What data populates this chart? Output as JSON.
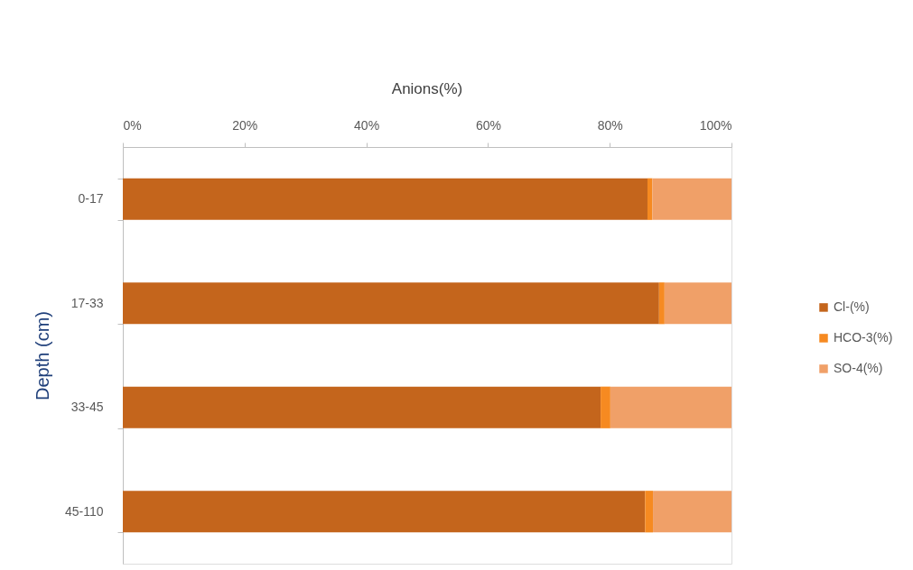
{
  "chart_data": {
    "type": "bar",
    "orientation": "horizontal",
    "stacked": true,
    "title": "Anions(%)",
    "ylabel": "Depth (cm)",
    "categories": [
      "0-17",
      "17-33",
      "33-45",
      "45-110"
    ],
    "series": [
      {
        "name": "Cl-(%)",
        "color": "#c4651c",
        "values": [
          86.2,
          88.1,
          78.5,
          85.8
        ]
      },
      {
        "name": "HCO-3(%)",
        "color": "#f68a21",
        "values": [
          0.8,
          0.9,
          1.6,
          1.3
        ]
      },
      {
        "name": "SO-4(%)",
        "color": "#f0a068",
        "values": [
          13.0,
          11.0,
          19.9,
          12.9
        ]
      }
    ],
    "xlim": [
      0,
      100
    ],
    "xticks": [
      {
        "value": 0,
        "label": "0%"
      },
      {
        "value": 20,
        "label": "20%"
      },
      {
        "value": 40,
        "label": "40%"
      },
      {
        "value": 60,
        "label": "60%"
      },
      {
        "value": 80,
        "label": "80%"
      },
      {
        "value": 100,
        "label": "100%"
      }
    ],
    "legend": "right"
  }
}
